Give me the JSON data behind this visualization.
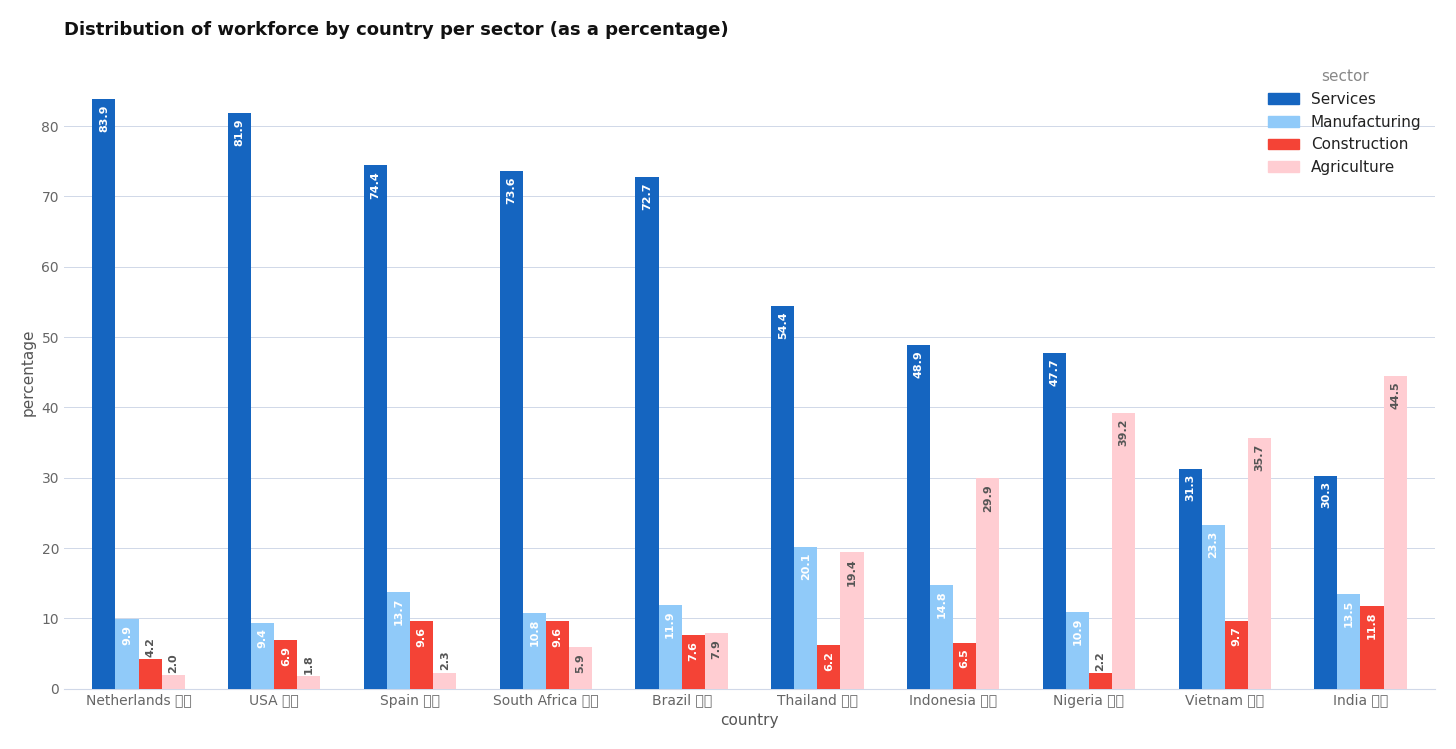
{
  "title": "Distribution of workforce by country per sector (as a percentage)",
  "xlabel": "country",
  "ylabel": "percentage",
  "legend_title": "sector",
  "countries": [
    "Netherlands 🇳🇱",
    "USA 🇺🇸",
    "Spain 🇪🇸",
    "South Africa 🇿🇦",
    "Brazil 🇧🇷",
    "Thailand 🇹🇭",
    "Indonesia 🇮🇩",
    "Nigeria 🇳🇬",
    "Vietnam 🇻🇳",
    "India 🇮🇳"
  ],
  "sectors": [
    "Services",
    "Manufacturing",
    "Construction",
    "Agriculture"
  ],
  "colors": [
    "#1565C0",
    "#90CAF9",
    "#F44336",
    "#FFCDD2"
  ],
  "data": {
    "Services": [
      83.9,
      81.9,
      74.4,
      73.6,
      72.7,
      54.4,
      48.9,
      47.7,
      31.3,
      30.3
    ],
    "Manufacturing": [
      9.9,
      9.4,
      13.7,
      10.8,
      11.9,
      20.1,
      14.8,
      10.9,
      23.3,
      13.5
    ],
    "Construction": [
      4.2,
      6.9,
      9.6,
      9.6,
      7.6,
      6.2,
      6.5,
      2.2,
      9.7,
      11.8
    ],
    "Agriculture": [
      2.0,
      1.8,
      2.3,
      5.9,
      7.9,
      19.4,
      29.9,
      39.2,
      35.7,
      44.5
    ]
  },
  "label_inside_colors": {
    "Services": "white",
    "Manufacturing": "white",
    "Construction": "white",
    "Agriculture": "#555555"
  },
  "ylim": [
    0,
    90
  ],
  "background_color": "#ffffff",
  "grid_color": "#d0d8e8",
  "title_fontsize": 13,
  "axis_label_fontsize": 11,
  "tick_fontsize": 10,
  "bar_label_fontsize": 8,
  "legend_fontsize": 11,
  "bar_width": 0.17,
  "group_width": 1.0
}
